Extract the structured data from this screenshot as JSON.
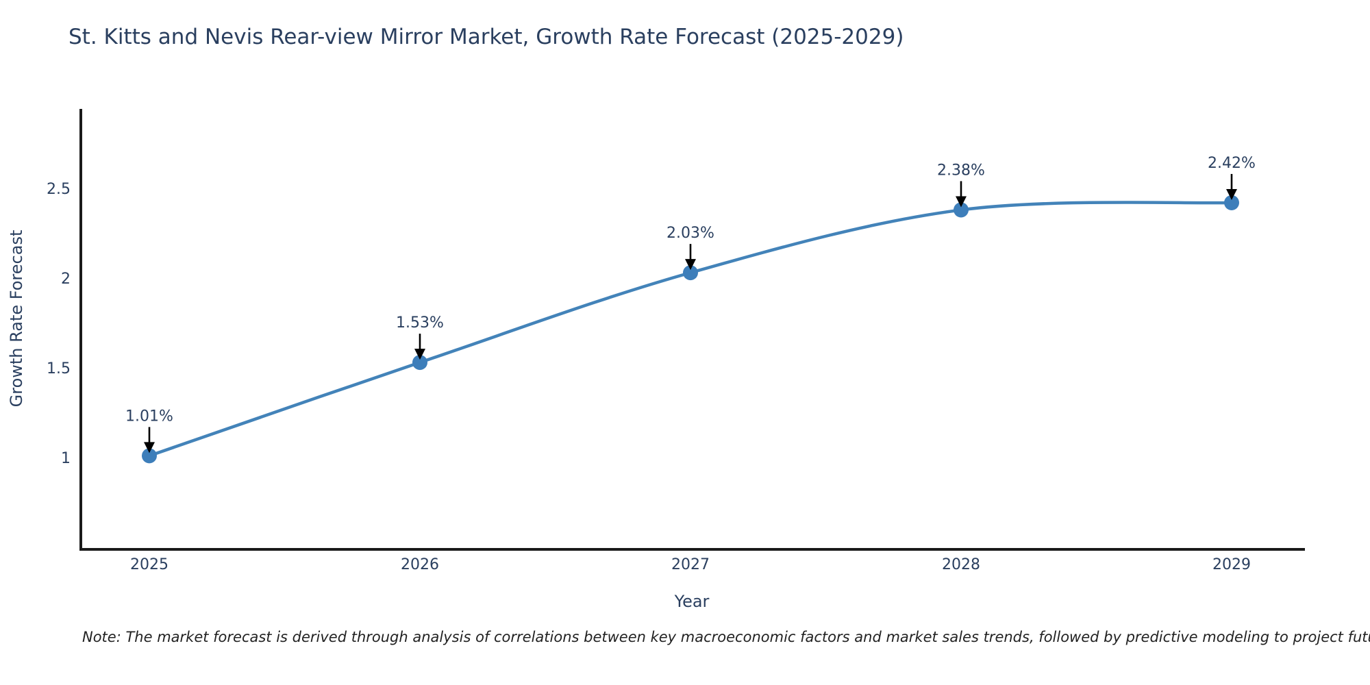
{
  "title": "St. Kitts and Nevis Rear-view Mirror Market, Growth Rate Forecast (2025-2029)",
  "note": "Note: The market forecast is derived through analysis of correlations between key macroeconomic factors and market sales trends, followed by predictive modeling to project future sales",
  "chart_data": {
    "type": "line",
    "title": "St. Kitts and Nevis Rear-view Mirror Market, Growth Rate Forecast (2025-2029)",
    "xlabel": "Year",
    "ylabel": "Growth Rate Forecast",
    "categories": [
      "2025",
      "2026",
      "2027",
      "2028",
      "2029"
    ],
    "values": [
      1.01,
      1.53,
      2.03,
      2.38,
      2.42
    ],
    "point_labels": [
      "1.01%",
      "1.53%",
      "2.03%",
      "2.38%",
      "2.42%"
    ],
    "yticks": [
      1,
      1.5,
      2,
      2.5
    ],
    "ytick_labels": [
      "1",
      "1.5",
      "2",
      "2.5"
    ],
    "ylim": [
      0.49,
      2.95
    ],
    "grid": false,
    "legend": "none",
    "line_shape": "spline",
    "annotation_style": "arrow-down-to-point",
    "colors": {
      "line": "#4383b9",
      "marker": "#3d7eba",
      "axis": "#1a1a1a",
      "text": "#2a3f5f",
      "arrow": "#000000",
      "note_text": "#222222"
    }
  }
}
